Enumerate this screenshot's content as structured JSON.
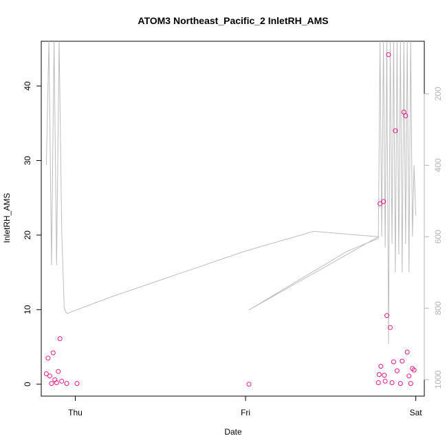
{
  "chart_data": {
    "type": "scatter",
    "title": "ATOM3 Northeast_Pacific_2 InletRH_AMS",
    "xlabel": "Date",
    "ylabel": "InletRH_AMS",
    "x_axis": {
      "ticks": [
        {
          "label": "Thu",
          "value": 0
        },
        {
          "label": "Fri",
          "value": 1
        },
        {
          "label": "Sat",
          "value": 2
        }
      ],
      "range": [
        -0.2,
        2.05
      ]
    },
    "y_axis": {
      "range": [
        -1.6,
        46
      ],
      "ticks": [
        0,
        10,
        20,
        30,
        40
      ]
    },
    "y2_axis": {
      "range": [
        1046,
        53
      ],
      "ticks": [
        200,
        400,
        600,
        800,
        1000
      ],
      "color": "#b3b3b3"
    },
    "grid": false,
    "colors": {
      "points": "#e8168a",
      "secondary_line": "#bdbdbd",
      "axes": "#000000"
    },
    "series": [
      {
        "type": "scatter",
        "axis": "left",
        "x": [
          -0.17,
          -0.16,
          -0.15,
          -0.14,
          -0.13,
          -0.12,
          -0.11,
          -0.1,
          -0.09,
          -0.08,
          -0.05,
          0.01,
          1.02,
          1.78,
          1.785,
          1.79,
          1.795,
          1.81,
          1.815,
          1.82,
          1.83,
          1.84,
          1.85,
          1.86,
          1.87,
          1.88,
          1.89,
          1.91,
          1.92,
          1.93,
          1.94,
          1.95,
          1.96,
          1.97,
          1.98,
          1.99
        ],
        "y": [
          1.4,
          3.5,
          1.1,
          0.1,
          4.2,
          0.6,
          0.2,
          1.7,
          6.1,
          0.4,
          0.1,
          0.1,
          0.0,
          0.2,
          1.3,
          24.2,
          2.4,
          24.5,
          1.2,
          0.4,
          9.2,
          44.2,
          7.6,
          0.2,
          3.0,
          34.0,
          1.8,
          0.1,
          3.1,
          36.5,
          36.0,
          4.3,
          1.1,
          0.1,
          2.1,
          1.9
        ]
      },
      {
        "type": "line",
        "axis": "right",
        "x": [
          -0.17,
          -0.155,
          -0.14,
          -0.125,
          -0.11,
          -0.095,
          -0.08,
          -0.065,
          -0.05,
          0.2,
          0.6,
          1.0,
          1.4,
          1.78,
          1.02,
          1.3,
          1.6,
          1.78,
          1.79,
          1.8,
          1.81,
          1.82,
          1.83,
          1.84,
          1.85,
          1.86,
          1.87,
          1.88,
          1.89,
          1.9,
          1.91,
          1.92,
          1.93,
          1.94,
          1.95,
          1.96,
          1.97,
          1.98,
          1.99,
          2.0
        ],
        "y": [
          400,
          50,
          680,
          50,
          680,
          50,
          580,
          800,
          815,
          770,
          705,
          640,
          585,
          600,
          805,
          725,
          640,
          605,
          50,
          600,
          50,
          630,
          50,
          900,
          50,
          620,
          50,
          700,
          50,
          650,
          50,
          700,
          50,
          620,
          50,
          700,
          50,
          600,
          400,
          540
        ],
        "name": ""
      }
    ]
  }
}
